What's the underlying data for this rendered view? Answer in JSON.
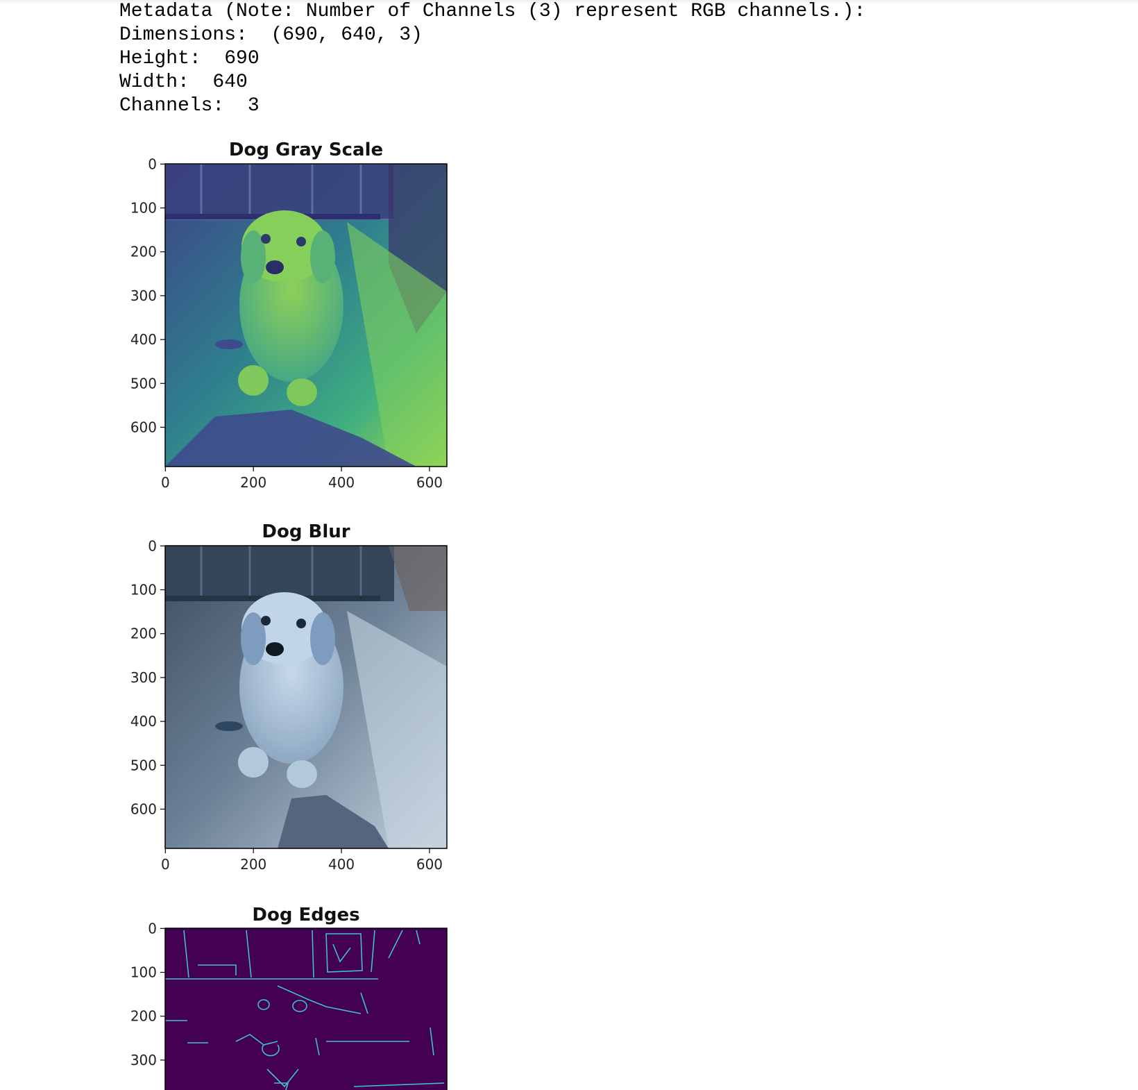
{
  "output": {
    "lines": [
      "Metadata (Note: Number of Channels (3) represent RGB channels.):",
      "Dimensions:  (690, 640, 3)",
      "Height:  690",
      "Width:  640",
      "Channels:  3"
    ]
  },
  "plots": [
    {
      "title": "Dog Gray Scale",
      "colormap": "viridis",
      "yticks": [
        "0",
        "100",
        "200",
        "300",
        "400",
        "500",
        "600"
      ],
      "xticks": [
        "0",
        "200",
        "400",
        "600"
      ]
    },
    {
      "title": "Dog Blur",
      "colormap": "rgb",
      "yticks": [
        "0",
        "100",
        "200",
        "300",
        "400",
        "500",
        "600"
      ],
      "xticks": [
        "0",
        "200",
        "400",
        "600"
      ]
    },
    {
      "title": "Dog Edges",
      "colormap": "binary-viridis",
      "yticks": [
        "0",
        "100",
        "200",
        "300"
      ],
      "xticks": []
    }
  ],
  "colors": {
    "viridis_dark": "#3b3f82",
    "viridis_mid": "#2c8a8c",
    "viridis_light": "#9fd94a",
    "blur_dark": "#3a4f66",
    "blur_light": "#b9c9d8",
    "edges_bg": "#440154",
    "edges_line": "#3fc1c9"
  }
}
